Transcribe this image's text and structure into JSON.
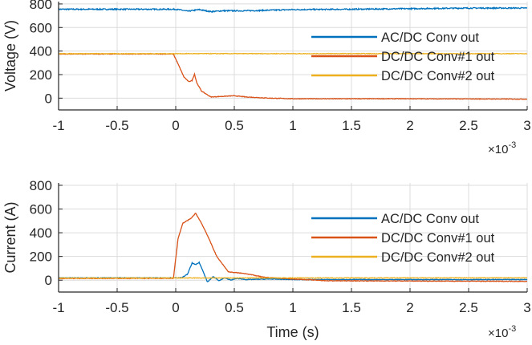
{
  "chart_data": [
    {
      "type": "line",
      "ylabel": "Voltage (V)",
      "xlabel": "",
      "x_exponent_label": "×10",
      "x_exponent": "-3",
      "xlim": [
        -1,
        3
      ],
      "ylim": [
        -100,
        820
      ],
      "xticks": [
        -1,
        -0.5,
        0,
        0.5,
        1,
        1.5,
        2,
        2.5,
        3
      ],
      "xtick_labels": [
        "-1",
        "-0.5",
        "0",
        "0.5",
        "1",
        "1.5",
        "2",
        "2.5",
        "3"
      ],
      "yticks": [
        0,
        200,
        400,
        600,
        800
      ],
      "ytick_labels": [
        "0",
        "200",
        "400",
        "600",
        "800"
      ],
      "grid": true,
      "legend_position": "right",
      "series": [
        {
          "name": "AC/DC Conv out",
          "color": "#0072BD",
          "x": [
            -1,
            -0.5,
            0,
            0.05,
            0.1,
            0.2,
            0.3,
            0.4,
            0.6,
            1,
            1.5,
            2,
            2.5,
            3
          ],
          "y": [
            755,
            755,
            755,
            748,
            738,
            752,
            735,
            742,
            742,
            752,
            755,
            760,
            765,
            765
          ]
        },
        {
          "name": "DC/DC Conv#1 out",
          "color": "#D95319",
          "x": [
            -1,
            -0.02,
            0.02,
            0.07,
            0.11,
            0.14,
            0.16,
            0.18,
            0.22,
            0.3,
            0.4,
            0.5,
            0.6,
            0.8,
            1,
            2,
            3
          ],
          "y": [
            375,
            375,
            290,
            180,
            140,
            150,
            205,
            130,
            60,
            10,
            15,
            20,
            10,
            0,
            -5,
            -5,
            -8
          ]
        },
        {
          "name": "DC/DC Conv#2 out",
          "color": "#EDB120",
          "x": [
            -1,
            3
          ],
          "y": [
            378,
            378
          ]
        }
      ]
    },
    {
      "type": "line",
      "ylabel": "Current (A)",
      "xlabel": "Time (s)",
      "x_exponent_label": "×10",
      "x_exponent": "-3",
      "xlim": [
        -1,
        3
      ],
      "ylim": [
        -100,
        820
      ],
      "xticks": [
        -1,
        -0.5,
        0,
        0.5,
        1,
        1.5,
        2,
        2.5,
        3
      ],
      "xtick_labels": [
        "-1",
        "-0.5",
        "0",
        "0.5",
        "1",
        "1.5",
        "2",
        "2.5",
        "3"
      ],
      "yticks": [
        0,
        200,
        400,
        600,
        800
      ],
      "ytick_labels": [
        "0",
        "200",
        "400",
        "600",
        "800"
      ],
      "grid": true,
      "legend_position": "right",
      "series": [
        {
          "name": "AC/DC Conv out",
          "color": "#0072BD",
          "x": [
            -1,
            0.05,
            0.1,
            0.14,
            0.17,
            0.2,
            0.24,
            0.27,
            0.32,
            0.37,
            0.42,
            0.47,
            0.52,
            0.6,
            0.8,
            1,
            2,
            3
          ],
          "y": [
            20,
            20,
            50,
            145,
            130,
            150,
            60,
            -15,
            30,
            -5,
            20,
            0,
            15,
            5,
            10,
            5,
            5,
            5
          ]
        },
        {
          "name": "DC/DC Conv#1 out",
          "color": "#D95319",
          "x": [
            -1,
            -0.02,
            0.02,
            0.06,
            0.13,
            0.17,
            0.22,
            0.27,
            0.35,
            0.45,
            0.6,
            0.75,
            1,
            1.3,
            3
          ],
          "y": [
            15,
            15,
            350,
            480,
            520,
            565,
            480,
            380,
            200,
            70,
            55,
            25,
            10,
            -5,
            -10
          ]
        },
        {
          "name": "DC/DC Conv#2 out",
          "color": "#EDB120",
          "x": [
            -1,
            3
          ],
          "y": [
            18,
            20
          ]
        }
      ]
    }
  ]
}
